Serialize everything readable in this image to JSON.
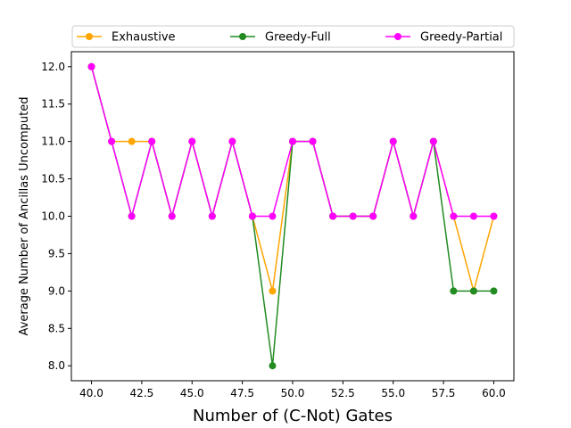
{
  "chart_data": {
    "type": "line",
    "xlabel": "Number of (C-Not) Gates",
    "ylabel": "Average Number of Ancillas Uncomputed",
    "xlim": [
      39.0,
      61.0
    ],
    "ylim": [
      7.8,
      12.2
    ],
    "xticks": [
      40.0,
      42.5,
      45.0,
      47.5,
      50.0,
      52.5,
      55.0,
      57.5,
      60.0
    ],
    "xtick_labels": [
      "40.0",
      "42.5",
      "45.0",
      "47.5",
      "50.0",
      "52.5",
      "55.0",
      "57.5",
      "60.0"
    ],
    "yticks": [
      8.0,
      8.5,
      9.0,
      9.5,
      10.0,
      10.5,
      11.0,
      11.5,
      12.0
    ],
    "ytick_labels": [
      "8.0",
      "8.5",
      "9.0",
      "9.5",
      "10.0",
      "10.5",
      "11.0",
      "11.5",
      "12.0"
    ],
    "legend_position": "top (above plot, 3 columns)",
    "grid": false,
    "x": [
      40,
      41,
      42,
      43,
      44,
      45,
      46,
      47,
      48,
      49,
      50,
      51,
      52,
      53,
      54,
      55,
      56,
      57,
      58,
      59,
      60
    ],
    "series": [
      {
        "name": "Exhaustive",
        "color": "#ffa500",
        "values": [
          12,
          11,
          11,
          11,
          10,
          11,
          10,
          11,
          10,
          9,
          11,
          11,
          10,
          10,
          10,
          11,
          10,
          11,
          10,
          9,
          10
        ]
      },
      {
        "name": "Greedy-Full",
        "color": "#228b22",
        "values": [
          12,
          11,
          10,
          11,
          10,
          11,
          10,
          11,
          10,
          8,
          11,
          11,
          10,
          10,
          10,
          11,
          10,
          11,
          9,
          9,
          9
        ]
      },
      {
        "name": "Greedy-Partial",
        "color": "#ff00ff",
        "values": [
          12,
          11,
          10,
          11,
          10,
          11,
          10,
          11,
          10,
          10,
          11,
          11,
          10,
          10,
          10,
          11,
          10,
          11,
          10,
          10,
          10
        ]
      }
    ]
  }
}
